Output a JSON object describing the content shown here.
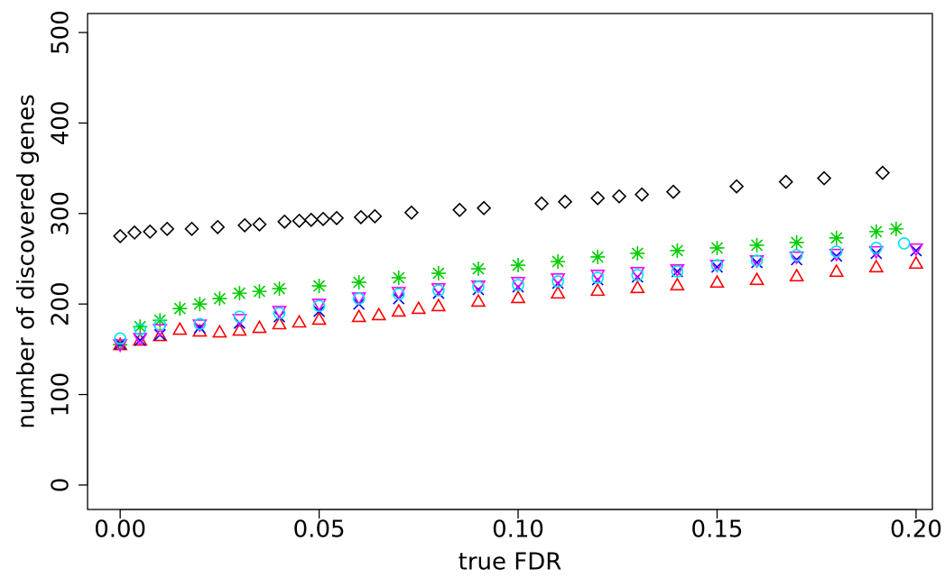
{
  "chart_data": {
    "type": "scatter",
    "xlabel": "true FDR",
    "ylabel": "number of discovered genes",
    "xlim": [
      -0.0082,
      0.2041
    ],
    "ylim": [
      -27,
      521
    ],
    "xticks": [
      {
        "value": 0,
        "label": "0.00"
      },
      0.05,
      {
        "value": 0.1,
        "label": "0.10"
      },
      0.15,
      {
        "value": 0.2,
        "label": "0.20"
      }
    ],
    "yticks": [
      0,
      100,
      200,
      300,
      400,
      500
    ],
    "series": [
      {
        "color": "#000000",
        "marker": "diamond",
        "x": [
          0,
          0.0036,
          0.0075,
          0.0118,
          0.018,
          0.0245,
          0.0313,
          0.035,
          0.0413,
          0.045,
          0.048,
          0.051,
          0.0544,
          0.0605,
          0.064,
          0.0732,
          0.0853,
          0.0914,
          0.1059,
          0.1118,
          0.12,
          0.1254,
          0.1311,
          0.139,
          0.1549,
          0.1673,
          0.1769,
          0.1916
        ],
        "values": [
          275,
          279,
          280,
          283,
          283,
          285,
          287,
          288,
          291,
          292,
          293,
          294,
          295,
          296,
          297,
          301,
          304,
          306,
          311,
          313,
          317,
          319,
          321,
          324,
          330,
          335,
          339,
          345
        ]
      },
      {
        "color": "#00cc00",
        "marker": "asterisk",
        "x": [
          0,
          0.005,
          0.01,
          0.015,
          0.02,
          0.025,
          0.03,
          0.035,
          0.04,
          0.05,
          0.06,
          0.07,
          0.08,
          0.09,
          0.1,
          0.11,
          0.12,
          0.13,
          0.14,
          0.15,
          0.16,
          0.17,
          0.18,
          0.19,
          0.195
        ],
        "values": [
          155,
          175,
          182,
          195,
          200,
          206,
          212,
          214,
          217,
          220,
          224,
          229,
          234,
          239,
          243,
          247,
          252,
          256,
          259,
          262,
          265,
          268,
          273,
          280,
          283
        ]
      },
      {
        "color": "#ff0000",
        "marker": "triangle",
        "x": [
          0,
          0.005,
          0.01,
          0.015,
          0.02,
          0.025,
          0.03,
          0.035,
          0.04,
          0.045,
          0.05,
          0.06,
          0.065,
          0.07,
          0.075,
          0.08,
          0.09,
          0.1,
          0.11,
          0.12,
          0.13,
          0.14,
          0.15,
          0.16,
          0.17,
          0.18,
          0.19,
          0.2
        ],
        "values": [
          155,
          160,
          165,
          172,
          170,
          169,
          171,
          174,
          178,
          180,
          183,
          186,
          188,
          192,
          195,
          198,
          203,
          207,
          212,
          215,
          218,
          221,
          224,
          227,
          231,
          236,
          241,
          245
        ]
      },
      {
        "color": "#0000ff",
        "marker": "cross",
        "x": [
          0,
          0.005,
          0.01,
          0.02,
          0.03,
          0.04,
          0.05,
          0.06,
          0.07,
          0.08,
          0.09,
          0.1,
          0.11,
          0.12,
          0.13,
          0.14,
          0.15,
          0.16,
          0.17,
          0.18,
          0.19,
          0.2
        ],
        "values": [
          156,
          160,
          166,
          174,
          179,
          186,
          192,
          200,
          206,
          212,
          216,
          219,
          223,
          227,
          230,
          236,
          241,
          246,
          249,
          253,
          256,
          259
        ]
      },
      {
        "color": "#ff00ff",
        "marker": "triangle-down",
        "x": [
          0,
          0.005,
          0.01,
          0.02,
          0.03,
          0.04,
          0.05,
          0.06,
          0.07,
          0.08,
          0.09,
          0.1,
          0.11,
          0.12,
          0.13,
          0.14,
          0.15,
          0.16,
          0.17,
          0.18,
          0.19,
          0.2
        ],
        "values": [
          155,
          162,
          172,
          177,
          183,
          192,
          200,
          207,
          213,
          217,
          220,
          224,
          228,
          232,
          235,
          238,
          243,
          248,
          252,
          255,
          258,
          261
        ]
      },
      {
        "color": "#00e5ee",
        "marker": "circle",
        "x": [
          0,
          0.005,
          0.01,
          0.02,
          0.03,
          0.04,
          0.05,
          0.06,
          0.07,
          0.08,
          0.09,
          0.1,
          0.11,
          0.12,
          0.13,
          0.14,
          0.15,
          0.16,
          0.17,
          0.18,
          0.19,
          0.197
        ],
        "values": [
          162,
          172,
          177,
          178,
          186,
          190,
          198,
          206,
          211,
          215,
          219,
          221,
          225,
          229,
          232,
          236,
          243,
          248,
          254,
          258,
          262,
          267
        ]
      }
    ]
  }
}
